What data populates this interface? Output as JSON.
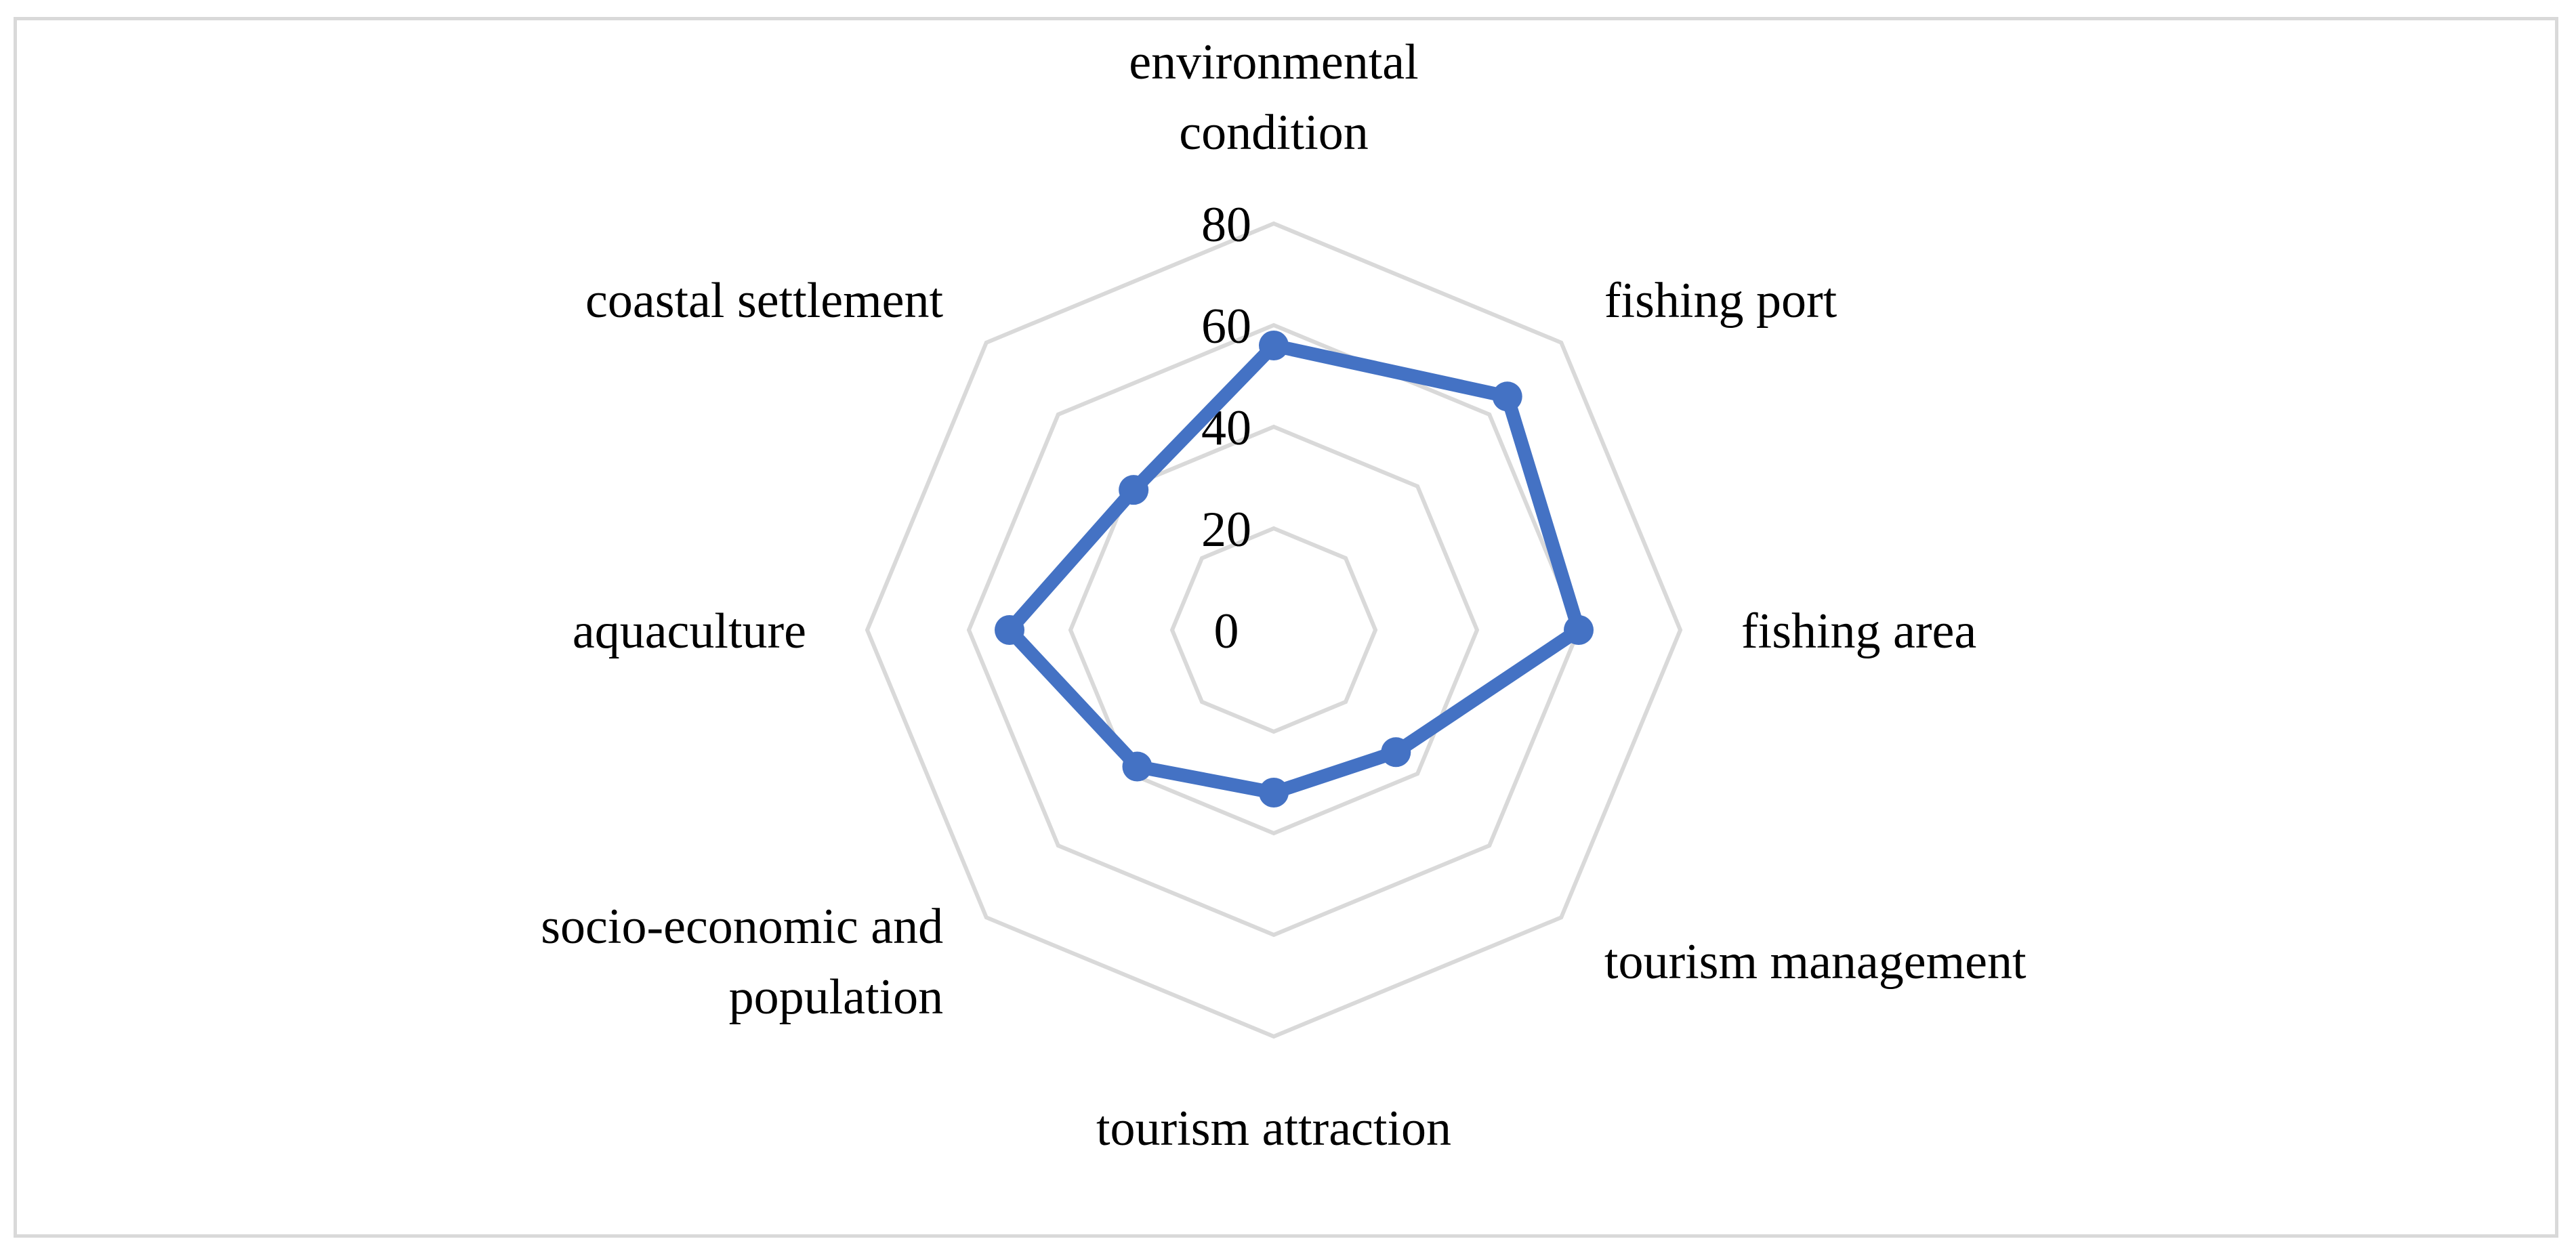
{
  "chart_data": {
    "type": "radar",
    "title": "",
    "categories": [
      "environmental condition",
      "fishing port",
      "fishing area",
      "tourism management",
      "tourism attraction",
      "socio-economic and population",
      "aquaculture",
      "coastal settlement"
    ],
    "category_lines": [
      [
        "environmental",
        "condition"
      ],
      [
        "fishing port"
      ],
      [
        "fishing area"
      ],
      [
        "tourism management"
      ],
      [
        "tourism attraction"
      ],
      [
        "socio-economic and",
        "population"
      ],
      [
        "aquaculture"
      ],
      [
        "coastal settlement"
      ]
    ],
    "ticks": [
      0,
      20,
      40,
      60,
      80
    ],
    "tick_labels": [
      "0",
      "20",
      "40",
      "60",
      "80"
    ],
    "range": [
      0,
      80
    ],
    "series": [
      {
        "values": [
          56,
          65,
          60,
          34,
          32,
          38,
          52,
          39
        ],
        "color": "#4472c4"
      }
    ],
    "grid": true,
    "legend": "none",
    "colors": {
      "grid": "#d9d9d9",
      "frame": "#d9d9d9",
      "series": "#4472c4"
    }
  }
}
